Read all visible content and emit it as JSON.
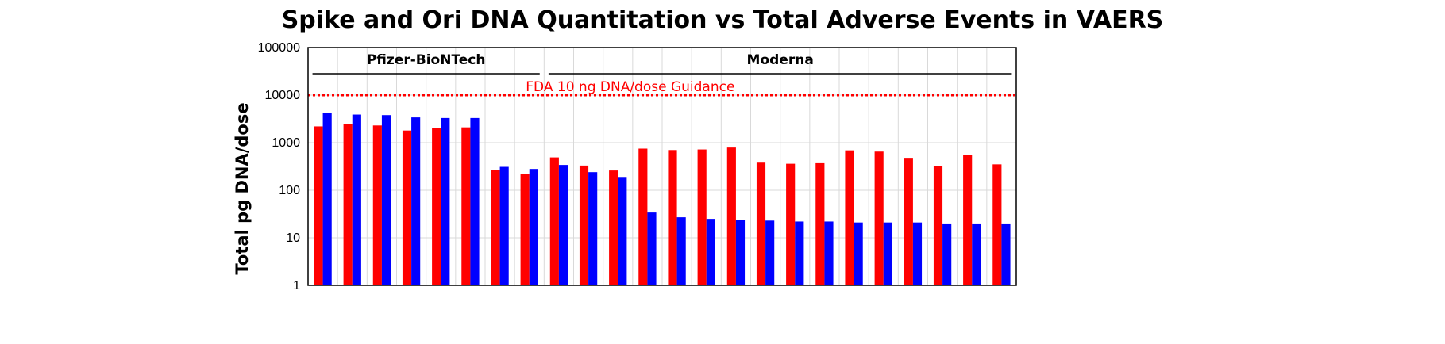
{
  "chart_data": {
    "type": "bar",
    "title": "Spike and Ori DNA Quantitation vs Total Adverse Events in VAERS",
    "ylabel": "Total pg DNA/dose",
    "xlabel": "",
    "yscale": "log",
    "ylim": [
      1,
      100000
    ],
    "yticks": [
      "1",
      "10",
      "100",
      "1000",
      "10000",
      "100000"
    ],
    "grid": true,
    "legend": "none",
    "categories": [
      "",
      "",
      "",
      "",
      "",
      "",
      "",
      "",
      "",
      "",
      "",
      "",
      "",
      "",
      "",
      "",
      "",
      "",
      "",
      "",
      "",
      "",
      "",
      ""
    ],
    "series": [
      {
        "color": "#ff0000",
        "values": [
          2200,
          2500,
          2300,
          1800,
          2000,
          2100,
          270,
          220,
          490,
          330,
          260,
          750,
          700,
          720,
          790,
          380,
          360,
          370,
          690,
          650,
          480,
          320,
          560,
          350
        ]
      },
      {
        "color": "#0000ff",
        "values": [
          4300,
          3900,
          3800,
          3400,
          3300,
          3300,
          310,
          280,
          340,
          240,
          190,
          34,
          27,
          25,
          24,
          23,
          22,
          22,
          21,
          21,
          21,
          20,
          20,
          20
        ]
      }
    ],
    "groups": [
      {
        "label": "Pfizer-BioNTech",
        "start": 0,
        "end": 7
      },
      {
        "label": "Moderna",
        "start": 8,
        "end": 23
      }
    ],
    "reference_line": {
      "value": 10000,
      "label": "FDA 10 ng DNA/dose Guidance",
      "color": "#ff0000"
    }
  }
}
